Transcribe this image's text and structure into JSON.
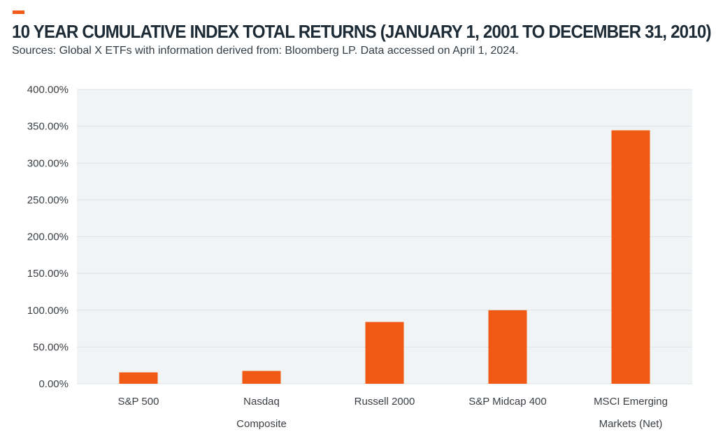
{
  "header": {
    "title": "10 YEAR CUMULATIVE INDEX TOTAL RETURNS (JANUARY 1, 2001 TO DECEMBER 31, 2010)",
    "subtitle": "Sources: Global X ETFs with information derived from: Bloomberg LP. Data accessed on April 1, 2024."
  },
  "colors": {
    "accent": "#f05a1a",
    "bar": "#f05a14",
    "plot_background": "#f0f4f5",
    "gridline": "#dde3e6",
    "title": "#1d2b36"
  },
  "chart_data": {
    "type": "bar",
    "title": "10 YEAR CUMULATIVE INDEX TOTAL RETURNS (JANUARY 1, 2001 TO DECEMBER 31, 2010)",
    "subtitle": "Sources: Global X ETFs with information derived from: Bloomberg LP. Data accessed on April 1, 2024.",
    "categories": [
      [
        "S&P 500"
      ],
      [
        "Nasdaq",
        "Composite"
      ],
      [
        "Russell 2000"
      ],
      [
        "S&P Midcap 400"
      ],
      [
        "MSCI Emerging",
        "Markets (Net)"
      ]
    ],
    "values": [
      15.5,
      17.5,
      84.0,
      100.0,
      344.5
    ],
    "ylim": [
      0,
      400
    ],
    "yticks": [
      0,
      50,
      100,
      150,
      200,
      250,
      300,
      350,
      400
    ],
    "ytick_labels": [
      "0.00%",
      "50.00%",
      "100.00%",
      "150.00%",
      "200.00%",
      "250.00%",
      "300.00%",
      "350.00%",
      "400.00%"
    ],
    "xlabel": "",
    "ylabel": "",
    "grid": true,
    "legend": false
  }
}
